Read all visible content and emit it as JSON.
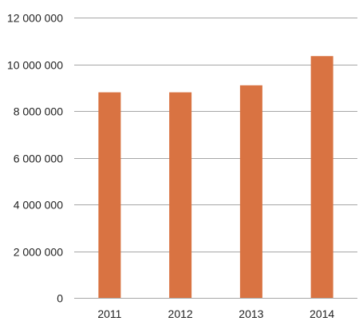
{
  "chart_data": {
    "type": "bar",
    "categories": [
      "2011",
      "2012",
      "2013",
      "2014"
    ],
    "values": [
      8800000,
      8800000,
      9100000,
      10350000
    ],
    "ylim": [
      0,
      12000000
    ],
    "y_ticks": [
      0,
      2000000,
      4000000,
      6000000,
      8000000,
      10000000,
      12000000
    ],
    "y_tick_labels": [
      "0",
      "2 000 000",
      "4 000 000",
      "6 000 000",
      "8 000 000",
      "10 000 000",
      "12 000 000"
    ],
    "title": "",
    "xlabel": "",
    "ylabel": "",
    "grid": true,
    "legend": "none",
    "bar_color": "#d97342"
  }
}
